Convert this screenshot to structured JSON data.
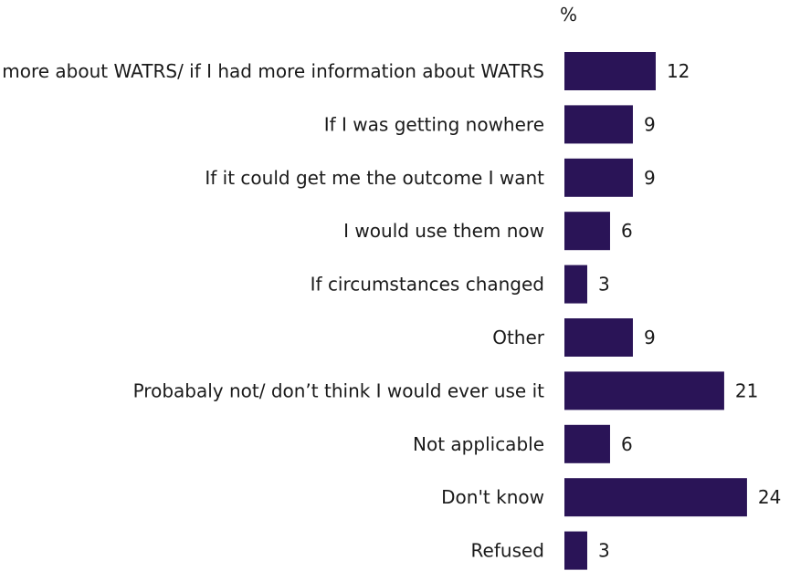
{
  "chart_data": {
    "type": "bar",
    "orientation": "horizontal",
    "unit_label": "%",
    "categories": [
      "If I knew more about WATRS/ if I had more information about WATRS",
      "If I was getting nowhere",
      "If it could get me the outcome I want",
      "I would use them now",
      "If circumstances changed",
      "Other",
      "Probabaly not/ don’t think I would ever use it",
      "Not applicable",
      "Don't know",
      "Refused"
    ],
    "values": [
      12,
      9,
      9,
      6,
      3,
      9,
      21,
      6,
      24,
      3
    ],
    "xlim": [
      0,
      24
    ],
    "grid": false,
    "legend": "none",
    "colors": {
      "bar": "#2a1457",
      "text": "#1a1a1a"
    }
  }
}
